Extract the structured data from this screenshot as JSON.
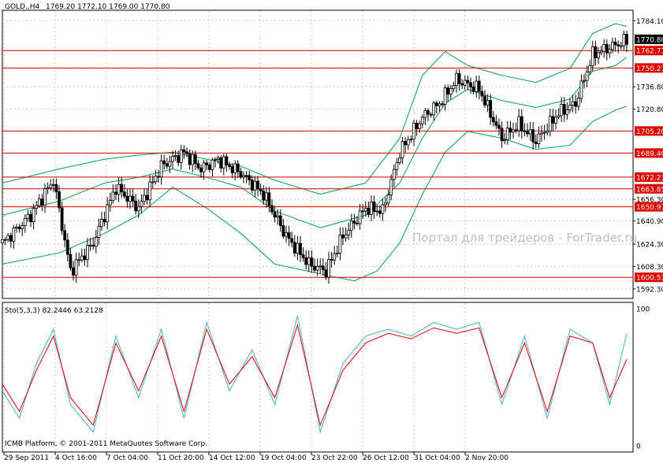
{
  "header": {
    "symbol": "GOLD.,H4",
    "ohlc": "1769.20 1772.10 1769.00 1770.80"
  },
  "watermark": "Портал для трейдеров - ForTrader.ru",
  "copyright": "ICMB Platform, © 2001-2011 MetaQuotes Software Corp.",
  "colors": {
    "background": "#ffffff",
    "candle": "#000000",
    "bollinger": "#00a050",
    "level_line": "#e00000",
    "level_label_bg": "#e00000",
    "stoch_main": "#40b0c0",
    "stoch_signal": "#e00000"
  },
  "chart_data": [
    {
      "type": "candlestick",
      "symbol": "GOLD",
      "timeframe": "H4",
      "current_price_label": "1770.80",
      "y_ticks": [
        "1784.10",
        "1736.80",
        "1720.80",
        "1656.30",
        "1640.90",
        "1624.30",
        "1608.30",
        "1592.30"
      ],
      "x_ticks": [
        "29 Sep 2011",
        "4 Oct 16:00",
        "7 Oct 04:00",
        "11 Oct 20:00",
        "14 Oct 12:00",
        "19 Oct 04:00",
        "23 Oct 22:00",
        "26 Oct 12:00",
        "31 Oct 04:00",
        "2 Nov 20:00"
      ],
      "horizontal_levels": [
        "1762.71",
        "1750.27",
        "1705.20",
        "1689.40",
        "1672.23",
        "1663.85",
        "1650.97",
        "1600.53"
      ],
      "price_path_approx": [
        [
          0,
          1625
        ],
        [
          5,
          1645
        ],
        [
          9,
          1670
        ],
        [
          12,
          1605
        ],
        [
          16,
          1625
        ],
        [
          20,
          1665
        ],
        [
          24,
          1650
        ],
        [
          28,
          1680
        ],
        [
          32,
          1690
        ],
        [
          35,
          1678
        ],
        [
          38,
          1685
        ],
        [
          42,
          1675
        ],
        [
          46,
          1660
        ],
        [
          50,
          1630
        ],
        [
          54,
          1610
        ],
        [
          57,
          1605
        ],
        [
          60,
          1630
        ],
        [
          64,
          1650
        ],
        [
          67,
          1648
        ],
        [
          70,
          1690
        ],
        [
          74,
          1715
        ],
        [
          77,
          1725
        ],
        [
          80,
          1742
        ],
        [
          84,
          1735
        ],
        [
          88,
          1700
        ],
        [
          91,
          1710
        ],
        [
          94,
          1698
        ],
        [
          98,
          1718
        ],
        [
          101,
          1725
        ],
        [
          104,
          1760
        ],
        [
          107,
          1765
        ],
        [
          110,
          1770
        ]
      ],
      "bollinger_bands": {
        "upper": [
          [
            0,
            1668
          ],
          [
            10,
            1678
          ],
          [
            18,
            1685
          ],
          [
            24,
            1688
          ],
          [
            30,
            1690
          ],
          [
            36,
            1685
          ],
          [
            42,
            1680
          ],
          [
            48,
            1670
          ],
          [
            56,
            1660
          ],
          [
            64,
            1668
          ],
          [
            70,
            1700
          ],
          [
            74,
            1745
          ],
          [
            78,
            1762
          ],
          [
            82,
            1752
          ],
          [
            88,
            1745
          ],
          [
            94,
            1740
          ],
          [
            100,
            1750
          ],
          [
            104,
            1775
          ],
          [
            108,
            1782
          ],
          [
            110,
            1780
          ]
        ],
        "middle": [
          [
            0,
            1645
          ],
          [
            10,
            1655
          ],
          [
            18,
            1668
          ],
          [
            24,
            1672
          ],
          [
            30,
            1678
          ],
          [
            36,
            1672
          ],
          [
            42,
            1665
          ],
          [
            48,
            1648
          ],
          [
            56,
            1636
          ],
          [
            64,
            1645
          ],
          [
            70,
            1668
          ],
          [
            74,
            1700
          ],
          [
            78,
            1725
          ],
          [
            82,
            1735
          ],
          [
            88,
            1727
          ],
          [
            94,
            1722
          ],
          [
            100,
            1728
          ],
          [
            104,
            1748
          ],
          [
            108,
            1752
          ],
          [
            110,
            1758
          ]
        ],
        "lower": [
          [
            0,
            1610
          ],
          [
            10,
            1618
          ],
          [
            18,
            1632
          ],
          [
            24,
            1645
          ],
          [
            30,
            1665
          ],
          [
            36,
            1650
          ],
          [
            42,
            1632
          ],
          [
            48,
            1610
          ],
          [
            56,
            1603
          ],
          [
            62,
            1598
          ],
          [
            66,
            1605
          ],
          [
            70,
            1625
          ],
          [
            74,
            1660
          ],
          [
            78,
            1690
          ],
          [
            82,
            1705
          ],
          [
            88,
            1700
          ],
          [
            94,
            1692
          ],
          [
            100,
            1695
          ],
          [
            104,
            1712
          ],
          [
            108,
            1720
          ],
          [
            110,
            1723
          ]
        ]
      }
    },
    {
      "type": "line",
      "indicator_label": "Sto(5,3,3) 82.2446 63.2128",
      "y_ticks": [
        "100",
        "0"
      ],
      "ylim": [
        0,
        100
      ],
      "series": [
        {
          "name": "main",
          "values": [
            [
              0,
              40
            ],
            [
              3,
              20
            ],
            [
              6,
              60
            ],
            [
              9,
              85
            ],
            [
              12,
              30
            ],
            [
              16,
              10
            ],
            [
              20,
              80
            ],
            [
              24,
              35
            ],
            [
              28,
              85
            ],
            [
              32,
              20
            ],
            [
              36,
              90
            ],
            [
              40,
              40
            ],
            [
              44,
              70
            ],
            [
              48,
              30
            ],
            [
              52,
              95
            ],
            [
              56,
              10
            ],
            [
              60,
              60
            ],
            [
              64,
              80
            ],
            [
              68,
              85
            ],
            [
              72,
              80
            ],
            [
              76,
              90
            ],
            [
              80,
              85
            ],
            [
              84,
              90
            ],
            [
              88,
              30
            ],
            [
              92,
              80
            ],
            [
              96,
              20
            ],
            [
              100,
              85
            ],
            [
              104,
              75
            ],
            [
              107,
              30
            ],
            [
              110,
              82
            ]
          ]
        },
        {
          "name": "signal",
          "values": [
            [
              0,
              45
            ],
            [
              3,
              25
            ],
            [
              6,
              55
            ],
            [
              9,
              80
            ],
            [
              12,
              35
            ],
            [
              16,
              15
            ],
            [
              20,
              75
            ],
            [
              24,
              40
            ],
            [
              28,
              80
            ],
            [
              32,
              25
            ],
            [
              36,
              85
            ],
            [
              40,
              45
            ],
            [
              44,
              65
            ],
            [
              48,
              35
            ],
            [
              52,
              88
            ],
            [
              56,
              15
            ],
            [
              60,
              55
            ],
            [
              64,
              75
            ],
            [
              68,
              82
            ],
            [
              72,
              78
            ],
            [
              76,
              86
            ],
            [
              80,
              82
            ],
            [
              84,
              86
            ],
            [
              88,
              35
            ],
            [
              92,
              75
            ],
            [
              96,
              25
            ],
            [
              100,
              80
            ],
            [
              104,
              75
            ],
            [
              107,
              35
            ],
            [
              110,
              63
            ]
          ]
        }
      ]
    }
  ]
}
